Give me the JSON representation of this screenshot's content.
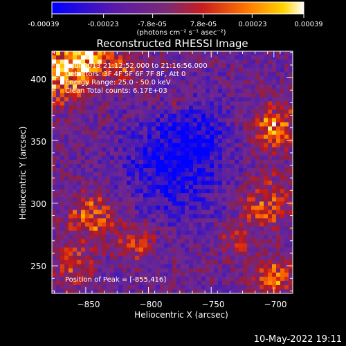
{
  "colorbar": {
    "ticks": [
      "-0.00039",
      "-0.00023",
      "-7.8e-05",
      "7.8e-05",
      "0.00023",
      "0.00039"
    ],
    "unit_label": "(photons cm⁻² s⁻¹ asec⁻²)",
    "range": [
      -0.00039,
      0.00039
    ]
  },
  "chart_data": {
    "type": "heatmap",
    "title": "Reconstructed RHESSI Image",
    "xlabel": "Heliocentric X (arcsec)",
    "ylabel": "Heliocentric Y (arcsec)",
    "xlim": [
      -877,
      -685
    ],
    "ylim": [
      228,
      421
    ],
    "x_ticks": [
      -850,
      -800,
      -750,
      -700
    ],
    "y_ticks": [
      250,
      300,
      350,
      400
    ],
    "x_tick_labels": [
      "−850",
      "−800",
      "−750",
      "−700"
    ],
    "y_tick_labels": [
      "250",
      "300",
      "350",
      "400"
    ],
    "annotations": [
      "7-Jul-2013 21:12:52.000 to 21:16:56.000",
      "Detectors: 3F 4F 5F 6F 7F 8F, Att 0",
      "Energy Range: 25.0 - 50.0 keV",
      "Clean    Total counts: 6.17E+03"
    ],
    "peak_label": "Position of Peak = [-855,416]",
    "peak": [
      -855,
      416
    ]
  },
  "footer": {
    "timestamp": "10-May-2022 19:11"
  }
}
